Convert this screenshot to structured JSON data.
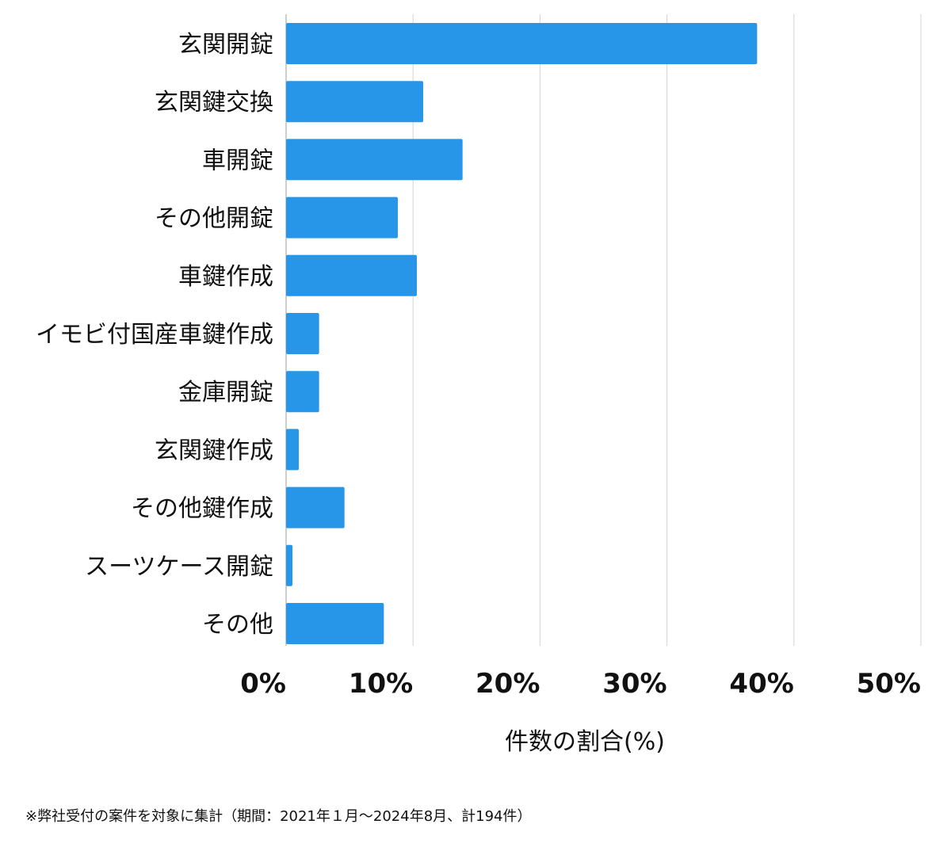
{
  "chart_data": {
    "type": "bar",
    "orientation": "horizontal",
    "categories": [
      "玄関開錠",
      "玄関鍵交換",
      "車開錠",
      "その他開錠",
      "車鍵作成",
      "イモビ付国産車鍵作成",
      "金庫開錠",
      "玄関鍵作成",
      "その他鍵作成",
      "スーツケース開錠",
      "その他"
    ],
    "values": [
      37.1,
      10.8,
      13.9,
      8.8,
      10.3,
      2.6,
      2.6,
      1.0,
      4.6,
      0.5,
      7.7
    ],
    "xlim": [
      0,
      50
    ],
    "x_ticks": [
      "0%",
      "10%",
      "20%",
      "30%",
      "40%",
      "50%"
    ],
    "xlabel": "件数の割合(%)",
    "ylabel": "",
    "grid": "vertical",
    "bar_color": "#2796e8"
  },
  "footnote": "※弊社受付の案件を対象に集計（期間：2021年１月〜2024年8月、計194件）"
}
